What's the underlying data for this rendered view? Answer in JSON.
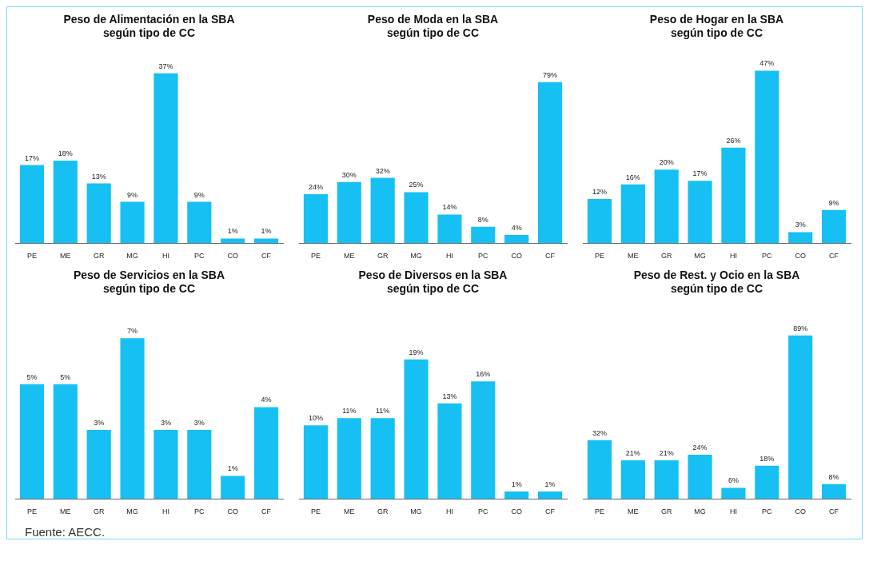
{
  "chart_data": [
    {
      "type": "bar",
      "title": "Peso de Alimentación en la SBA\nsegún tipo de CC",
      "categories": [
        "PE",
        "ME",
        "GR",
        "MG",
        "HI",
        "PC",
        "CO",
        "CF"
      ],
      "values": [
        17,
        18,
        13,
        9,
        37,
        9,
        1,
        1
      ],
      "value_labels": [
        "17%",
        "18%",
        "13%",
        "9%",
        "37%",
        "9%",
        "1%",
        "1%"
      ],
      "color": "#16c0f2"
    },
    {
      "type": "bar",
      "title": "Peso de Moda en la SBA\nsegún tipo de CC",
      "categories": [
        "PE",
        "ME",
        "GR",
        "MG",
        "HI",
        "PC",
        "CO",
        "CF"
      ],
      "values": [
        24,
        30,
        32,
        25,
        14,
        8,
        4,
        79
      ],
      "value_labels": [
        "24%",
        "30%",
        "32%",
        "25%",
        "14%",
        "8%",
        "4%",
        "79%"
      ],
      "color": "#16c0f2"
    },
    {
      "type": "bar",
      "title": "Peso de Hogar en la SBA\nsegún tipo de CC",
      "categories": [
        "PE",
        "ME",
        "GR",
        "MG",
        "HI",
        "PC",
        "CO",
        "CF"
      ],
      "values": [
        12,
        16,
        20,
        17,
        26,
        47,
        3,
        9
      ],
      "value_labels": [
        "12%",
        "16%",
        "20%",
        "17%",
        "26%",
        "47%",
        "3%",
        "9%"
      ],
      "color": "#16c0f2"
    },
    {
      "type": "bar",
      "title": "Peso de Servicios en la SBA\nsegún tipo de CC",
      "categories": [
        "PE",
        "ME",
        "GR",
        "MG",
        "HI",
        "PC",
        "CO",
        "CF"
      ],
      "values": [
        5,
        5,
        3,
        7,
        3,
        3,
        1,
        4
      ],
      "value_labels": [
        "5%",
        "5%",
        "3%",
        "7%",
        "3%",
        "3%",
        "1%",
        "4%"
      ],
      "color": "#16c0f2",
      "annotations": [
        "Fuente:  AECC."
      ]
    },
    {
      "type": "bar",
      "title": "Peso de Diversos en la SBA\nsegún tipo de CC",
      "categories": [
        "PE",
        "ME",
        "GR",
        "MG",
        "HI",
        "PC",
        "CO",
        "CF"
      ],
      "values": [
        10,
        11,
        11,
        19,
        13,
        16,
        1,
        1
      ],
      "value_labels": [
        "10%",
        "11%",
        "11%",
        "19%",
        "13%",
        "16%",
        "1%",
        "1%"
      ],
      "color": "#16c0f2"
    },
    {
      "type": "bar",
      "title": "Peso de Rest. y Ocio en la SBA\nsegún tipo de CC",
      "categories": [
        "PE",
        "ME",
        "GR",
        "MG",
        "HI",
        "PC",
        "CO",
        "CF"
      ],
      "values": [
        32,
        21,
        21,
        24,
        6,
        18,
        89,
        8
      ],
      "value_labels": [
        "32%",
        "21%",
        "21%",
        "24%",
        "6%",
        "18%",
        "89%",
        "8%"
      ],
      "color": "#16c0f2"
    }
  ]
}
